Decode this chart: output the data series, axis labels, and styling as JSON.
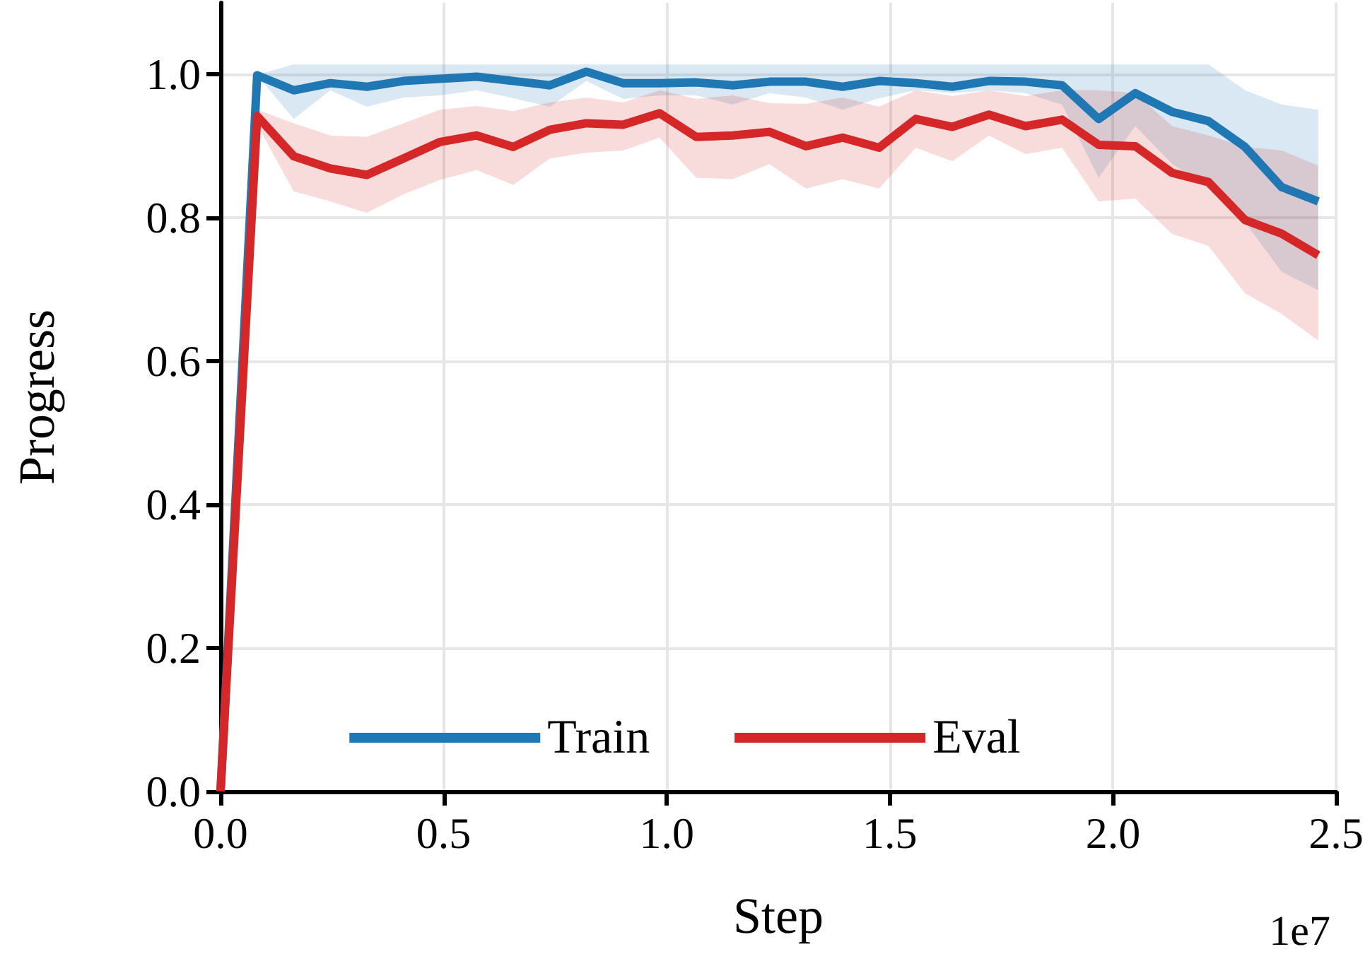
{
  "chart_data": {
    "type": "line",
    "xlabel": "Step",
    "ylabel": "Progress",
    "annotations": [
      "1e7"
    ],
    "x": [
      0,
      0.082,
      0.164,
      0.246,
      0.328,
      0.41,
      0.492,
      0.574,
      0.656,
      0.738,
      0.82,
      0.902,
      0.984,
      1.066,
      1.148,
      1.23,
      1.312,
      1.394,
      1.476,
      1.558,
      1.64,
      1.722,
      1.804,
      1.886,
      1.968,
      2.05,
      2.132,
      2.214,
      2.296,
      2.378,
      2.46
    ],
    "series": [
      {
        "name": "Train",
        "color": "#1f77b4",
        "values": [
          0,
          0.999,
          0.978,
          0.988,
          0.983,
          0.991,
          0.994,
          0.997,
          0.991,
          0.985,
          1.004,
          0.988,
          0.988,
          0.989,
          0.985,
          0.99,
          0.99,
          0.983,
          0.991,
          0.988,
          0.983,
          0.991,
          0.99,
          0.985,
          0.938,
          0.974,
          0.948,
          0.935,
          0.899,
          0.843,
          0.823
        ],
        "upper": [
          0,
          1.0,
          1.014,
          1.014,
          1.014,
          1.014,
          1.014,
          1.014,
          1.014,
          1.014,
          1.014,
          1.014,
          1.014,
          1.014,
          1.014,
          1.014,
          1.014,
          1.014,
          1.014,
          1.014,
          1.014,
          1.014,
          1.014,
          1.014,
          1.014,
          1.014,
          1.014,
          1.014,
          0.978,
          0.958,
          0.951
        ],
        "lower": [
          0,
          0.999,
          0.938,
          0.978,
          0.955,
          0.968,
          0.971,
          0.978,
          0.967,
          0.955,
          0.991,
          0.966,
          0.971,
          0.971,
          0.958,
          0.974,
          0.968,
          0.951,
          0.967,
          0.978,
          0.974,
          0.978,
          0.974,
          0.958,
          0.856,
          0.928,
          0.876,
          0.84,
          0.794,
          0.725,
          0.699
        ]
      },
      {
        "name": "Eval",
        "color": "#d62728",
        "values": [
          0,
          0.942,
          0.886,
          0.869,
          0.86,
          0.883,
          0.906,
          0.915,
          0.899,
          0.923,
          0.932,
          0.93,
          0.946,
          0.913,
          0.915,
          0.92,
          0.9,
          0.912,
          0.898,
          0.938,
          0.927,
          0.944,
          0.928,
          0.937,
          0.902,
          0.9,
          0.863,
          0.85,
          0.797,
          0.778,
          0.748
        ],
        "upper": [
          0,
          0.951,
          0.932,
          0.915,
          0.913,
          0.932,
          0.951,
          0.956,
          0.949,
          0.961,
          0.968,
          0.961,
          0.978,
          0.966,
          0.971,
          0.96,
          0.959,
          0.968,
          0.955,
          0.978,
          0.97,
          0.978,
          0.97,
          0.978,
          0.978,
          0.974,
          0.928,
          0.915,
          0.899,
          0.894,
          0.873
        ],
        "lower": [
          0,
          0.93,
          0.837,
          0.823,
          0.807,
          0.833,
          0.853,
          0.867,
          0.846,
          0.883,
          0.891,
          0.894,
          0.912,
          0.856,
          0.854,
          0.875,
          0.841,
          0.854,
          0.841,
          0.898,
          0.879,
          0.915,
          0.889,
          0.898,
          0.823,
          0.827,
          0.778,
          0.761,
          0.695,
          0.666,
          0.629
        ]
      }
    ],
    "xlim": [
      0,
      2.5
    ],
    "ylim": [
      0,
      1.1
    ],
    "xticks": [
      {
        "value": 0,
        "label": "0.0"
      },
      {
        "value": 0.5,
        "label": "0.5"
      },
      {
        "value": 1,
        "label": "1.0"
      },
      {
        "value": 1.5,
        "label": "1.5"
      },
      {
        "value": 2,
        "label": "2.0"
      },
      {
        "value": 2.5,
        "label": "2.5"
      }
    ],
    "yticks": [
      {
        "value": 0,
        "label": "0.0"
      },
      {
        "value": 0.2,
        "label": "0.2"
      },
      {
        "value": 0.4,
        "label": "0.4"
      },
      {
        "value": 0.6,
        "label": "0.6"
      },
      {
        "value": 0.8,
        "label": "0.8"
      },
      {
        "value": 1,
        "label": "1.0"
      }
    ],
    "grid": true,
    "legend": "bottom",
    "marker": "none",
    "line_style": "solid"
  }
}
